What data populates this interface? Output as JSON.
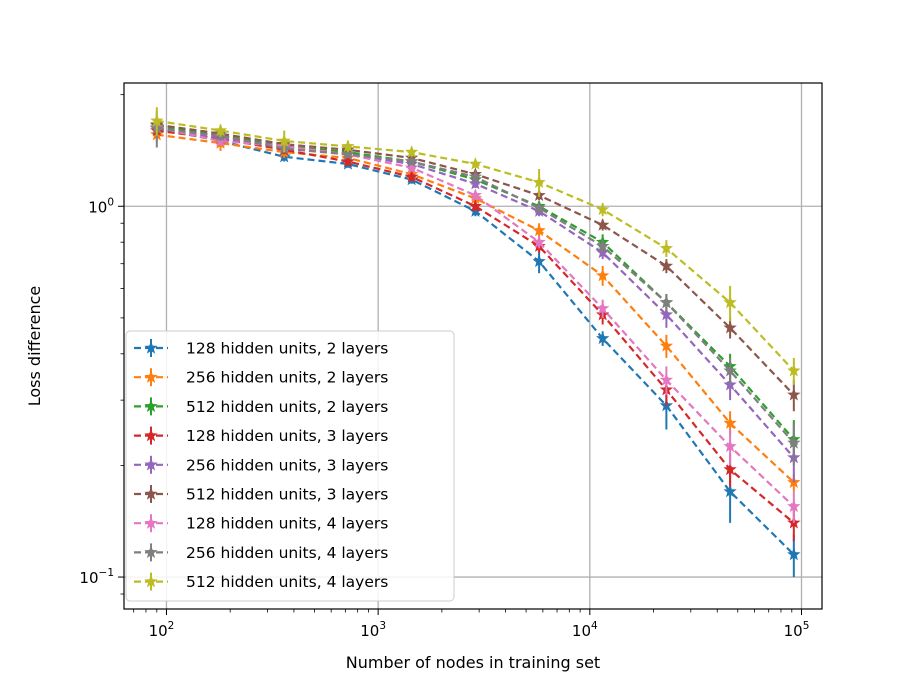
{
  "chart_data": {
    "type": "line",
    "x_scale": "log",
    "y_scale": "log",
    "xlim": [
      63,
      125000
    ],
    "ylim": [
      0.082,
      2.15
    ],
    "grid": true,
    "legend_position": "lower-left",
    "xlabel": "Number of nodes in training set",
    "ylabel": "Loss difference",
    "x_ticks": [
      {
        "value": 100,
        "base": "10",
        "exp": "2"
      },
      {
        "value": 1000,
        "base": "10",
        "exp": "3"
      },
      {
        "value": 10000,
        "base": "10",
        "exp": "4"
      },
      {
        "value": 100000,
        "base": "10",
        "exp": "5"
      }
    ],
    "y_ticks": [
      {
        "value": 0.1,
        "base": "10",
        "exp": "−1"
      },
      {
        "value": 1,
        "base": "10",
        "exp": "0"
      }
    ],
    "x": [
      90,
      180,
      360,
      720,
      1440,
      2880,
      5760,
      11500,
      23000,
      46000,
      92000
    ],
    "series": [
      {
        "name": "128 hidden units, 2 layers",
        "color": "#1f77b4",
        "values": [
          1.62,
          1.5,
          1.36,
          1.3,
          1.18,
          0.97,
          0.71,
          0.44,
          0.29,
          0.17,
          0.115
        ],
        "errors": [
          0.07,
          0.05,
          0.04,
          0.03,
          0.03,
          0.03,
          0.05,
          0.02,
          0.04,
          0.03,
          0.015
        ]
      },
      {
        "name": "256 hidden units, 2 layers",
        "color": "#ff7f0e",
        "values": [
          1.56,
          1.48,
          1.4,
          1.35,
          1.22,
          1.05,
          0.86,
          0.65,
          0.42,
          0.26,
          0.18
        ],
        "errors": [
          0.06,
          0.07,
          0.05,
          0.03,
          0.03,
          0.03,
          0.04,
          0.04,
          0.03,
          0.02,
          0.01
        ]
      },
      {
        "name": "512 hidden units, 2 layers",
        "color": "#2ca02c",
        "values": [
          1.65,
          1.55,
          1.45,
          1.4,
          1.32,
          1.18,
          1.0,
          0.8,
          0.55,
          0.37,
          0.235
        ],
        "errors": [
          0.06,
          0.05,
          0.04,
          0.03,
          0.03,
          0.03,
          0.03,
          0.04,
          0.03,
          0.03,
          0.03
        ]
      },
      {
        "name": "128 hidden units, 3 layers",
        "color": "#d62728",
        "values": [
          1.6,
          1.52,
          1.42,
          1.32,
          1.2,
          1.0,
          0.78,
          0.51,
          0.32,
          0.195,
          0.14
        ],
        "errors": [
          0.05,
          0.04,
          0.04,
          0.03,
          0.03,
          0.03,
          0.03,
          0.03,
          0.03,
          0.02,
          0.015
        ]
      },
      {
        "name": "256 hidden units, 3 layers",
        "color": "#9467bd",
        "values": [
          1.63,
          1.53,
          1.45,
          1.38,
          1.3,
          1.15,
          0.97,
          0.75,
          0.51,
          0.33,
          0.21
        ],
        "errors": [
          0.05,
          0.04,
          0.04,
          0.03,
          0.03,
          0.03,
          0.03,
          0.03,
          0.04,
          0.03,
          0.03
        ]
      },
      {
        "name": "512 hidden units, 3 layers",
        "color": "#8c564b",
        "values": [
          1.66,
          1.57,
          1.47,
          1.42,
          1.35,
          1.22,
          1.07,
          0.89,
          0.69,
          0.47,
          0.31
        ],
        "errors": [
          0.05,
          0.05,
          0.04,
          0.03,
          0.03,
          0.03,
          0.03,
          0.03,
          0.03,
          0.03,
          0.03
        ]
      },
      {
        "name": "128 hidden units, 4 layers",
        "color": "#e377c2",
        "values": [
          1.63,
          1.5,
          1.45,
          1.38,
          1.27,
          1.07,
          0.8,
          0.53,
          0.34,
          0.225,
          0.155
        ],
        "errors": [
          0.05,
          0.04,
          0.04,
          0.03,
          0.03,
          0.03,
          0.03,
          0.03,
          0.03,
          0.025,
          0.015
        ]
      },
      {
        "name": "256 hidden units, 4 layers",
        "color": "#7f7f7f",
        "values": [
          1.62,
          1.55,
          1.43,
          1.38,
          1.32,
          1.2,
          0.99,
          0.78,
          0.55,
          0.36,
          0.23
        ],
        "errors": [
          0.18,
          0.05,
          0.04,
          0.03,
          0.03,
          0.03,
          0.03,
          0.03,
          0.03,
          0.03,
          0.03
        ]
      },
      {
        "name": "512 hidden units, 4 layers",
        "color": "#bcbd22",
        "values": [
          1.7,
          1.6,
          1.5,
          1.45,
          1.4,
          1.3,
          1.16,
          0.98,
          0.77,
          0.55,
          0.36
        ],
        "errors": [
          0.15,
          0.06,
          0.1,
          0.05,
          0.04,
          0.03,
          0.1,
          0.04,
          0.04,
          0.06,
          0.03
        ]
      }
    ]
  }
}
